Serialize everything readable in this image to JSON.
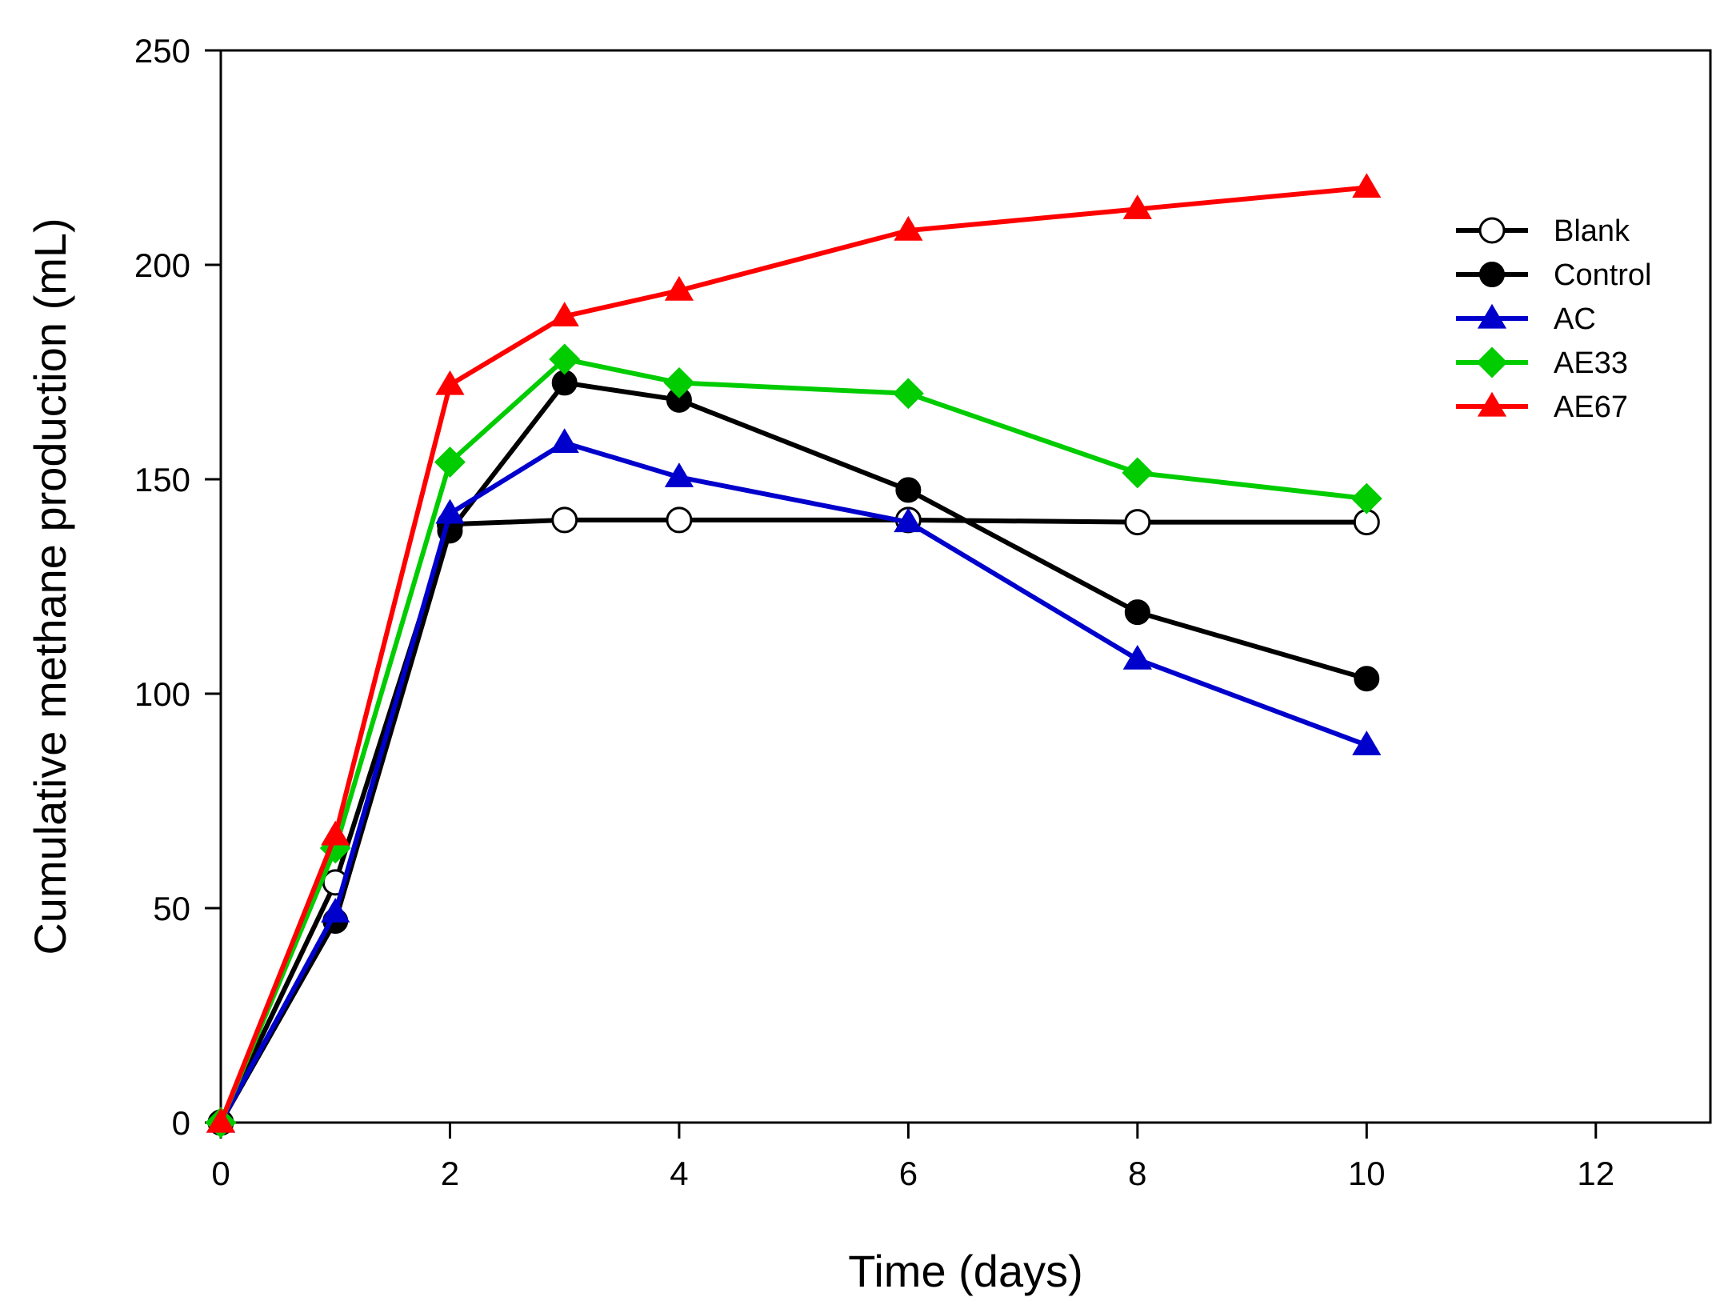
{
  "chart_data": {
    "type": "line",
    "title": "",
    "xlabel": "Time (days)",
    "ylabel": "Cumulative methane production (mL)",
    "xlim": [
      0,
      13
    ],
    "ylim": [
      0,
      250
    ],
    "xticks": [
      0,
      2,
      4,
      6,
      8,
      10,
      12
    ],
    "yticks": [
      0,
      50,
      100,
      150,
      200,
      250
    ],
    "grid": false,
    "legend_position": "top-right",
    "x": [
      0,
      1,
      2,
      3,
      4,
      6,
      8,
      10
    ],
    "series": [
      {
        "name": "Blank",
        "color": "#000000",
        "marker": "circle-open",
        "values": [
          0,
          56,
          139.5,
          140.5,
          140.5,
          140.5,
          140,
          140
        ]
      },
      {
        "name": "Control",
        "color": "#000000",
        "marker": "circle-filled",
        "values": [
          0,
          47,
          138,
          172.5,
          168.5,
          147.5,
          119,
          103.5
        ]
      },
      {
        "name": "AC",
        "color": "#0000cc",
        "marker": "triangle",
        "values": [
          0,
          49,
          142,
          158.5,
          150.5,
          140,
          108,
          88
        ]
      },
      {
        "name": "AE33",
        "color": "#00cc00",
        "marker": "diamond",
        "values": [
          0,
          64,
          154,
          178,
          172.5,
          170,
          151.5,
          145.5
        ]
      },
      {
        "name": "AE67",
        "color": "#ff0000",
        "marker": "triangle",
        "values": [
          0,
          67,
          172,
          188,
          194,
          208,
          213,
          218
        ]
      }
    ]
  }
}
